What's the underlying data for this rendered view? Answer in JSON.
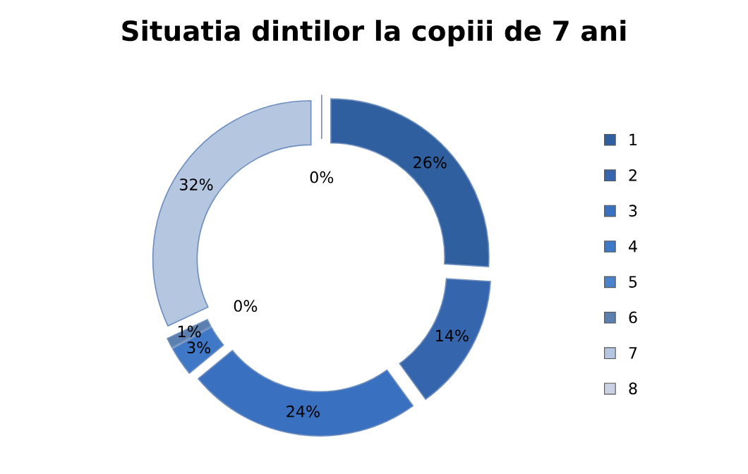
{
  "chart_data": {
    "type": "donut",
    "title": "Situatia dintilor la copiii de 7 ani",
    "categories": [
      "1",
      "2",
      "3",
      "4",
      "5",
      "6",
      "7",
      "8"
    ],
    "values": [
      26,
      14,
      24,
      3,
      0,
      1,
      32,
      0
    ],
    "value_labels": [
      "26%",
      "14%",
      "24%",
      "3%",
      "0%",
      "1%",
      "32%",
      "0%"
    ],
    "colors": [
      "#2f5f9f",
      "#3566ad",
      "#3a70c0",
      "#3f78c6",
      "#4a82cc",
      "#5b7fae",
      "#b4c6e0",
      "#c9d1e2"
    ],
    "legend": "right"
  }
}
